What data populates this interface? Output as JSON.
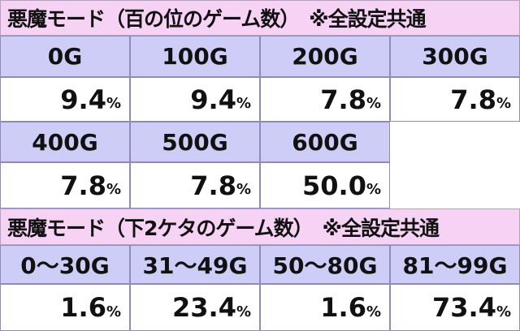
{
  "sections": [
    {
      "title": "悪魔モード（百の位のゲーム数）",
      "note": "※全設定共通",
      "rows": [
        {
          "headers": [
            "0G",
            "100G",
            "200G",
            "300G"
          ],
          "values": [
            {
              "number": "9.4",
              "unit": "%"
            },
            {
              "number": "9.4",
              "unit": "%"
            },
            {
              "number": "7.8",
              "unit": "%"
            },
            {
              "number": "7.8",
              "unit": "%"
            }
          ]
        },
        {
          "headers": [
            "400G",
            "500G",
            "600G"
          ],
          "values": [
            {
              "number": "7.8",
              "unit": "%"
            },
            {
              "number": "7.8",
              "unit": "%"
            },
            {
              "number": "50.0",
              "unit": "%"
            }
          ]
        }
      ]
    },
    {
      "title": "悪魔モード（下2ケタのゲーム数）",
      "note": "※全設定共通",
      "rows": [
        {
          "headers": [
            "0～30G",
            "31～49G",
            "50～80G",
            "81～99G"
          ],
          "values": [
            {
              "number": "1.6",
              "unit": "%"
            },
            {
              "number": "23.4",
              "unit": "%"
            },
            {
              "number": "1.6",
              "unit": "%"
            },
            {
              "number": "73.4",
              "unit": "%"
            }
          ]
        }
      ]
    }
  ]
}
